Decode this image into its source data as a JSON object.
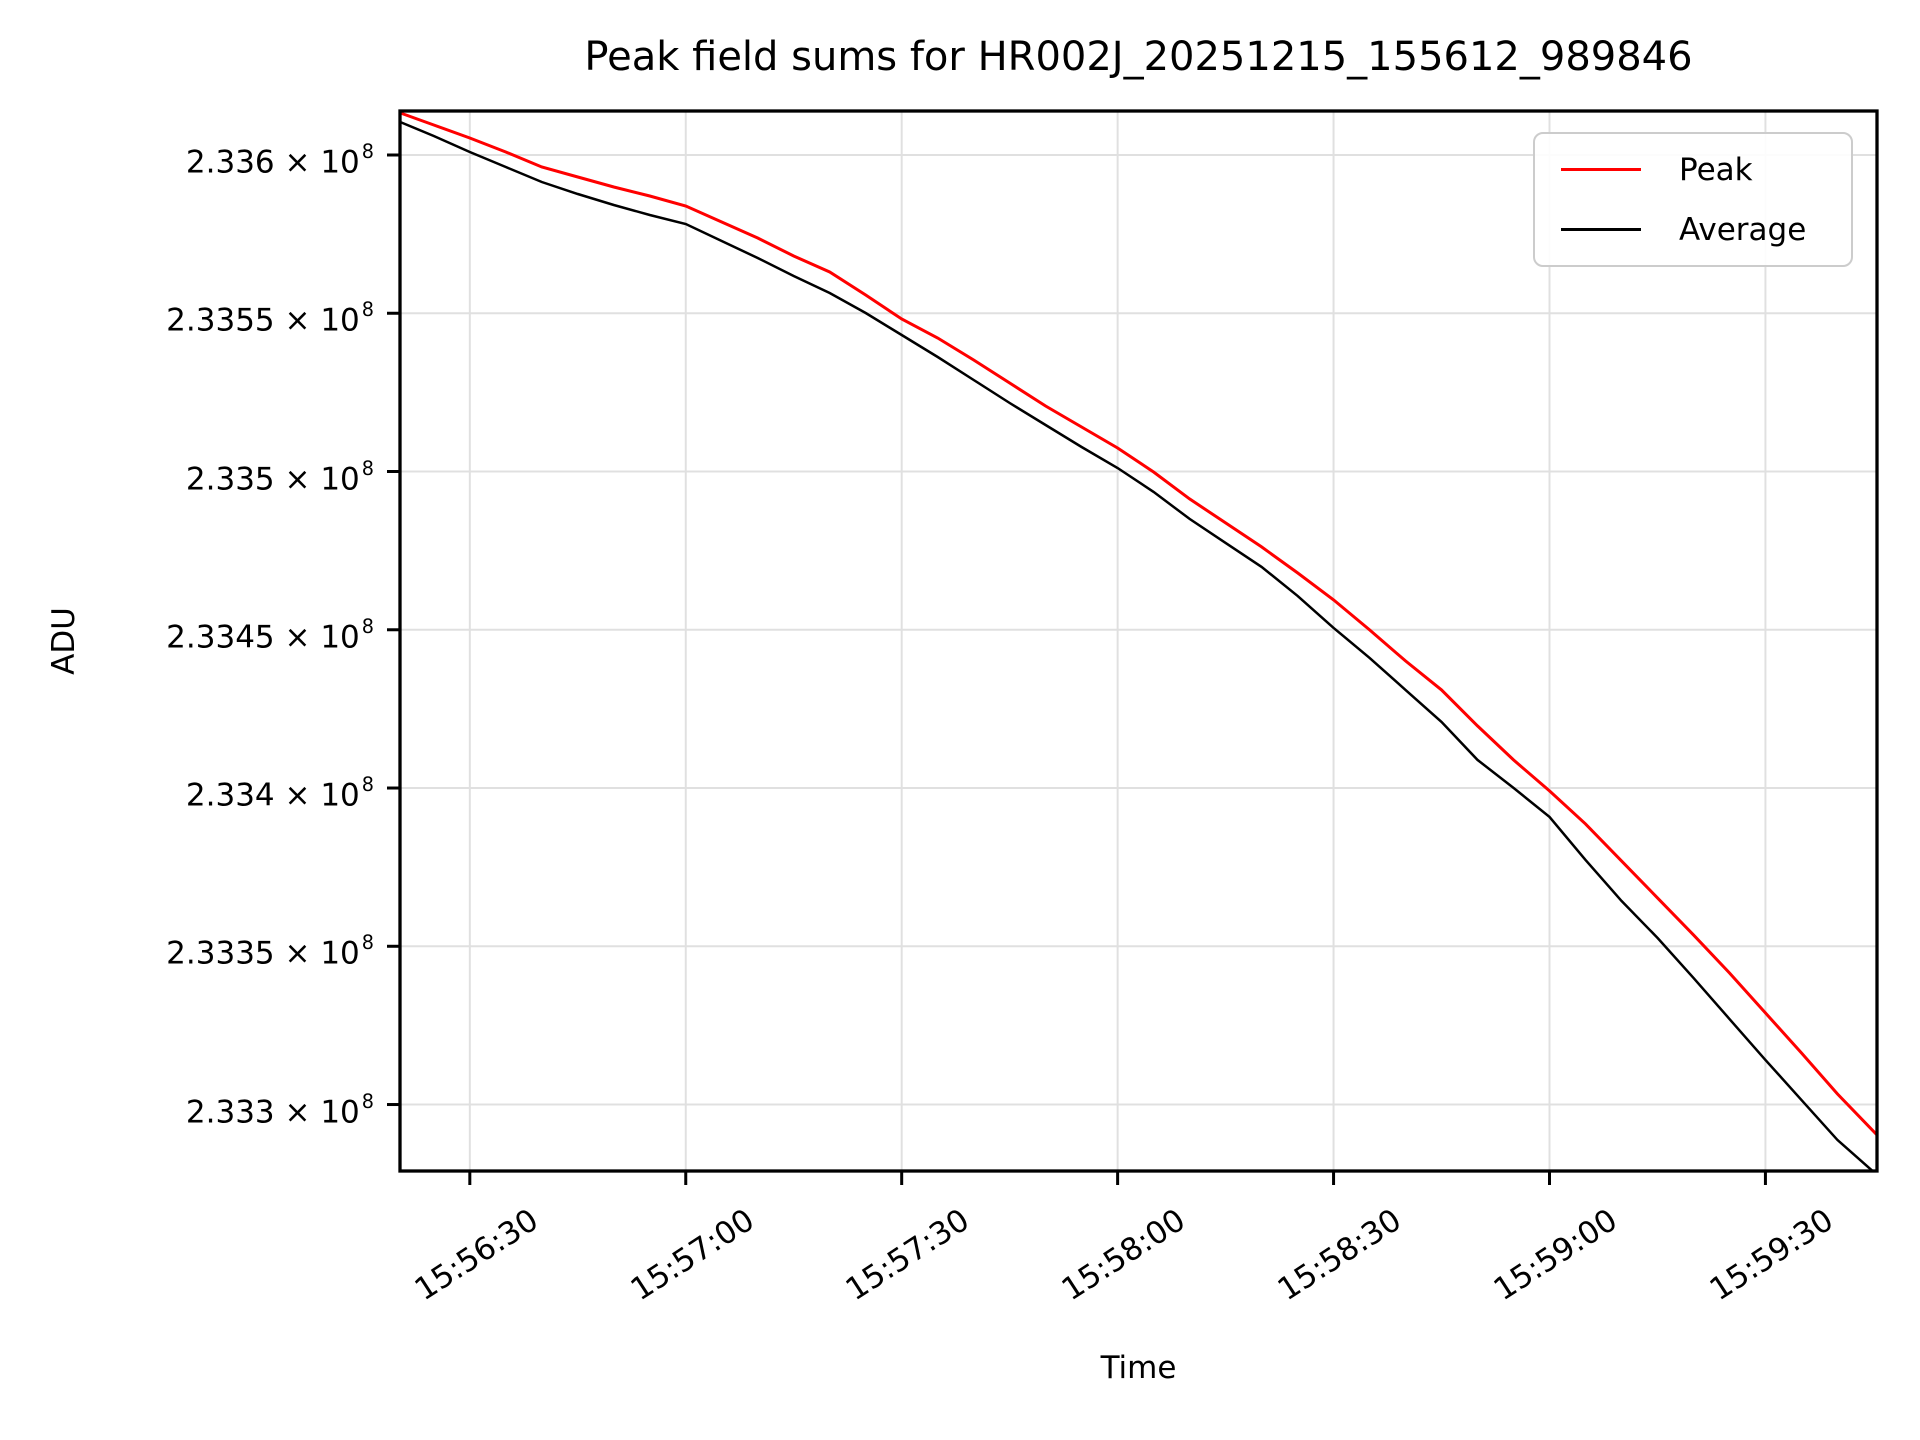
{
  "chart_data": {
    "type": "line",
    "title": "Peak field sums for HR002J_20251215_155612_989846",
    "xlabel": "Time",
    "ylabel": "ADU",
    "grid": true,
    "legend_position": "upper right",
    "colors": {
      "grid": "#e0e0e0",
      "frame": "#000000",
      "background": "#ffffff",
      "legend_border": "#cccccc"
    },
    "x_axis": {
      "tick_labels": [
        "15:56:30",
        "15:57:00",
        "15:57:30",
        "15:58:00",
        "15:58:30",
        "15:59:00",
        "15:59:30"
      ],
      "tick_seconds_after_15_56_00": [
        30,
        60,
        90,
        120,
        150,
        180,
        210
      ],
      "xlim_seconds_after_15_56_00": [
        20.3,
        225.5
      ]
    },
    "y_axis": {
      "tick_values": [
        233600000,
        233550000,
        233500000,
        233450000,
        233400000,
        233350000,
        233300000
      ],
      "tick_label_prefixes": [
        "2.336 × 10",
        "2.3355 × 10",
        "2.335 × 10",
        "2.3345 × 10",
        "2.334 × 10",
        "2.3335 × 10",
        "2.333 × 10"
      ],
      "tick_label_exponent": "8",
      "ylim": [
        233279000,
        233613900
      ]
    },
    "x_seconds_after_15_56_00": [
      20,
      25,
      30,
      35,
      40,
      45,
      50,
      55,
      60,
      65,
      70,
      75,
      80,
      85,
      90,
      95,
      100,
      105,
      110,
      115,
      120,
      125,
      130,
      135,
      140,
      145,
      150,
      155,
      160,
      165,
      170,
      175,
      180,
      185,
      190,
      195,
      200,
      205,
      210,
      215,
      220,
      225.5
    ],
    "series": [
      {
        "name": "Peak",
        "color": "#ff0000",
        "values": [
          233613584,
          233609477,
          233605370,
          233600948,
          233596209,
          233593050,
          233589891,
          233587048,
          233583889,
          233578835,
          233573781,
          233568094,
          233563040,
          233555774,
          233548192,
          233542190,
          233535240,
          233527974,
          233520709,
          233514075,
          233507441,
          233499859,
          233491330,
          233483749,
          233476167,
          233467954,
          233459424,
          233449947,
          233440154,
          233430993,
          233419621,
          233408880,
          233399087,
          233388662,
          233376974,
          233365286,
          233353598,
          233341594,
          233328958,
          233316322,
          233303370,
          233290418
        ]
      },
      {
        "name": "Average",
        "color": "#000000",
        "values": [
          233610741,
          233606002,
          233600948,
          233596209,
          233591471,
          233587680,
          233584205,
          233581046,
          233578203,
          233572833,
          233567462,
          233561776,
          233556406,
          233550088,
          233543138,
          233536188,
          233528922,
          233521657,
          233514707,
          233507757,
          233501123,
          233493542,
          233485012,
          233477430,
          233469849,
          233460688,
          233450579,
          233441102,
          233430993,
          233420885,
          233408880,
          233400035,
          233390873,
          233377290,
          233364338,
          233352650,
          233340015,
          233327063,
          233314111,
          233301475,
          233288839,
          233277782
        ]
      }
    ]
  }
}
